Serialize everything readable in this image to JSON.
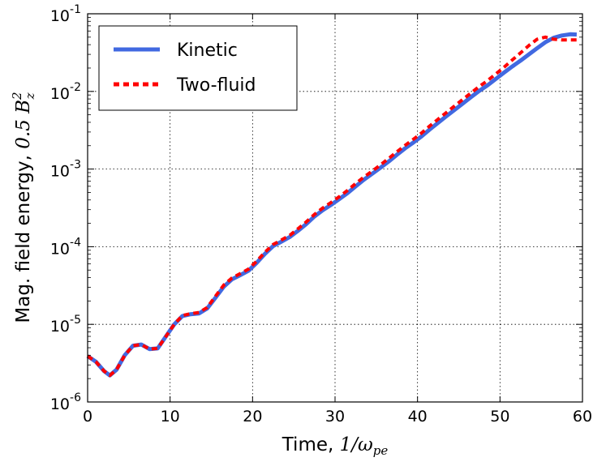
{
  "chart_data": {
    "type": "line",
    "x_scale": "linear",
    "y_scale": "log",
    "xlim": [
      0,
      60
    ],
    "ylim": [
      1e-06,
      0.1
    ],
    "grid": true,
    "legend_position": "top-left",
    "xlabel": {
      "text": "Time, ",
      "math": "1/ω",
      "sub": "pe"
    },
    "ylabel": {
      "text": "Mag. field energy, ",
      "math": "0.5 B",
      "sup": "2",
      "sub": "z"
    },
    "x_ticks": [
      {
        "value": 0,
        "label": "0"
      },
      {
        "value": 10,
        "label": "10"
      },
      {
        "value": 20,
        "label": "20"
      },
      {
        "value": 30,
        "label": "30"
      },
      {
        "value": 40,
        "label": "40"
      },
      {
        "value": 50,
        "label": "50"
      },
      {
        "value": 60,
        "label": "60"
      }
    ],
    "y_ticks": [
      {
        "exp": -6,
        "base": "10",
        "sup": "-6"
      },
      {
        "exp": -5,
        "base": "10",
        "sup": "-5"
      },
      {
        "exp": -4,
        "base": "10",
        "sup": "-4"
      },
      {
        "exp": -3,
        "base": "10",
        "sup": "-3"
      },
      {
        "exp": -2,
        "base": "10",
        "sup": "-2"
      },
      {
        "exp": -1,
        "base": "10",
        "sup": "-1"
      }
    ],
    "series": [
      {
        "name": "Kinetic",
        "color": "#4169e1",
        "style": "solid",
        "x": [
          0,
          1,
          2,
          2.7,
          3.5,
          4.5,
          5.5,
          6.5,
          7.5,
          8.5,
          9.5,
          10.5,
          11.5,
          12.5,
          13.5,
          14.5,
          15.5,
          16.5,
          17.5,
          18.5,
          19.5,
          20.5,
          21.5,
          22.5,
          23.5,
          24.5,
          25.5,
          26.5,
          27.5,
          28.5,
          29.5,
          30.5,
          31.5,
          32.5,
          33.5,
          34.5,
          35.5,
          36.5,
          37.5,
          38.5,
          39.5,
          40.5,
          41.5,
          42.5,
          43.5,
          44.5,
          45.5,
          46.5,
          47.5,
          48.5,
          49.5,
          50.5,
          51.5,
          52.5,
          53.5,
          54.5,
          55.5,
          56.5,
          57.5,
          58.5,
          59.3
        ],
        "y": [
          3.9e-06,
          3.3e-06,
          2.5e-06,
          2.2e-06,
          2.6e-06,
          4e-06,
          5.3e-06,
          5.5e-06,
          4.8e-06,
          4.9e-06,
          7e-06,
          1e-05,
          1.28e-05,
          1.35e-05,
          1.38e-05,
          1.6e-05,
          2.2e-05,
          3.05e-05,
          3.8e-05,
          4.3e-05,
          4.9e-05,
          6.2e-05,
          8.1e-05,
          0.000102,
          0.000116,
          0.000133,
          0.00016,
          0.000195,
          0.000245,
          0.000295,
          0.000345,
          0.00041,
          0.00049,
          0.0006,
          0.00073,
          0.00087,
          0.00104,
          0.00125,
          0.00153,
          0.00185,
          0.0022,
          0.00265,
          0.00325,
          0.00395,
          0.0048,
          0.0058,
          0.007,
          0.0085,
          0.0102,
          0.012,
          0.0145,
          0.0175,
          0.021,
          0.025,
          0.03,
          0.036,
          0.043,
          0.049,
          0.0525,
          0.0545,
          0.054
        ]
      },
      {
        "name": "Two-fluid",
        "color": "#ff0000",
        "style": "dashed",
        "x": [
          0,
          1,
          2,
          2.7,
          3.5,
          4.5,
          5.5,
          6.5,
          7.5,
          8.5,
          9.5,
          10.5,
          11.5,
          12.5,
          13.5,
          14.5,
          15.5,
          16.5,
          17.5,
          18.5,
          19.5,
          20.5,
          21.5,
          22.5,
          23.5,
          24.5,
          25.5,
          26.5,
          27.5,
          28.5,
          29.5,
          30.5,
          31.5,
          32.5,
          33.5,
          34.5,
          35.5,
          36.5,
          37.5,
          38.5,
          39.5,
          40.5,
          41.5,
          42.5,
          43.5,
          44.5,
          45.5,
          46.5,
          47.5,
          48.5,
          49.5,
          50.5,
          51.5,
          52.5,
          53.5,
          54.5,
          55.5,
          56.5,
          57.5,
          58.5,
          59.3
        ],
        "y": [
          3.9e-06,
          3.3e-06,
          2.5e-06,
          2.2e-06,
          2.6e-06,
          4e-06,
          5.3e-06,
          5.5e-06,
          4.8e-06,
          4.9e-06,
          7e-06,
          1e-05,
          1.3e-05,
          1.37e-05,
          1.42e-05,
          1.65e-05,
          2.3e-05,
          3.2e-05,
          3.95e-05,
          4.5e-05,
          5.15e-05,
          6.5e-05,
          8.5e-05,
          0.000107,
          0.000122,
          0.00014,
          0.00017,
          0.000208,
          0.00026,
          0.000315,
          0.00037,
          0.00044,
          0.00053,
          0.00065,
          0.00079,
          0.00094,
          0.00113,
          0.00137,
          0.00167,
          0.00202,
          0.00242,
          0.00292,
          0.0036,
          0.0044,
          0.00535,
          0.0065,
          0.0079,
          0.0096,
          0.0116,
          0.0138,
          0.0168,
          0.0205,
          0.0255,
          0.0315,
          0.039,
          0.047,
          0.05,
          0.047,
          0.046,
          0.046,
          0.046
        ]
      }
    ]
  }
}
